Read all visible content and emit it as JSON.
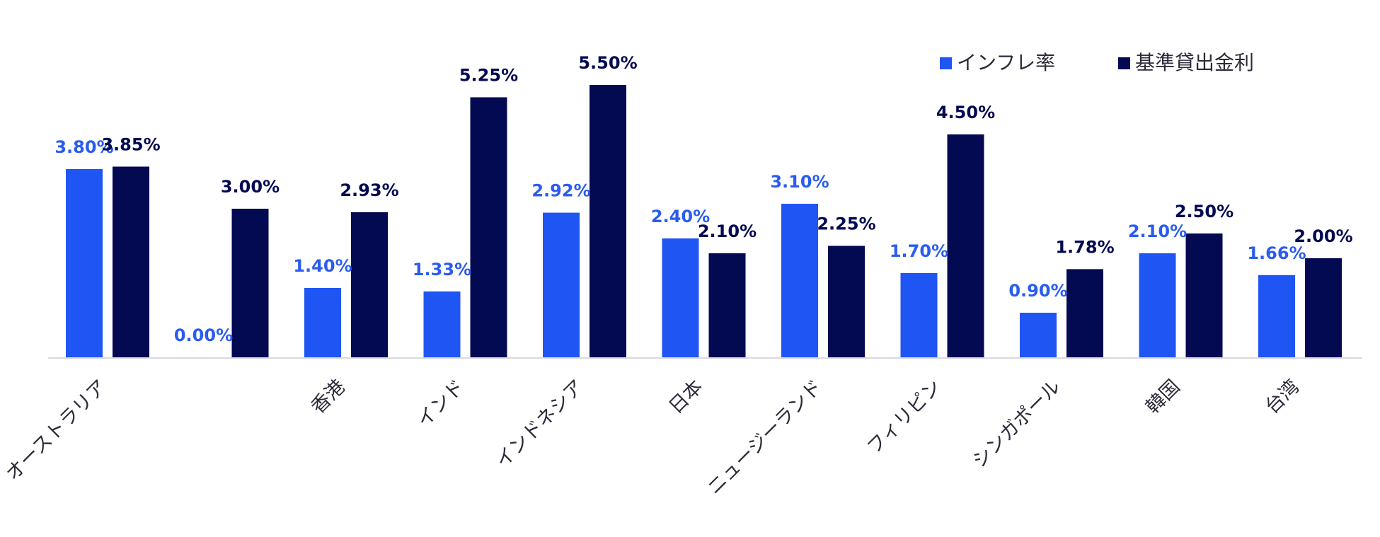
{
  "chart_data": {
    "type": "bar",
    "categories": [
      "オーストラリア",
      "",
      "香港",
      "インド",
      "インドネシア",
      "日本",
      "ニュージーランド",
      "フィリピン",
      "シンガポール",
      "韓国",
      "台湾"
    ],
    "series": [
      {
        "name": "インフレ率",
        "values": [
          3.8,
          0.0,
          1.4,
          1.33,
          2.92,
          2.4,
          3.1,
          1.7,
          0.9,
          2.1,
          1.66
        ],
        "labels": [
          "3.80%",
          "0.00%",
          "1.40%",
          "1.33%",
          "2.92%",
          "2.40%",
          "3.10%",
          "1.70%",
          "0.90%",
          "2.10%",
          "1.66%"
        ],
        "color": "#1f56f3"
      },
      {
        "name": "基準貸出金利",
        "values": [
          3.85,
          3.0,
          2.93,
          5.25,
          5.5,
          2.1,
          2.25,
          4.5,
          1.78,
          2.5,
          2.0
        ],
        "labels": [
          "3.85%",
          "3.00%",
          "2.93%",
          "5.25%",
          "5.50%",
          "2.10%",
          "2.25%",
          "4.50%",
          "1.78%",
          "2.50%",
          "2.00%"
        ],
        "color": "#030a52"
      }
    ],
    "title": "",
    "xlabel": "",
    "ylabel": "",
    "ylim": [
      0,
      5.5
    ],
    "grid": false,
    "legend_position": "top-right",
    "axis_color": "#d9d9e0"
  }
}
